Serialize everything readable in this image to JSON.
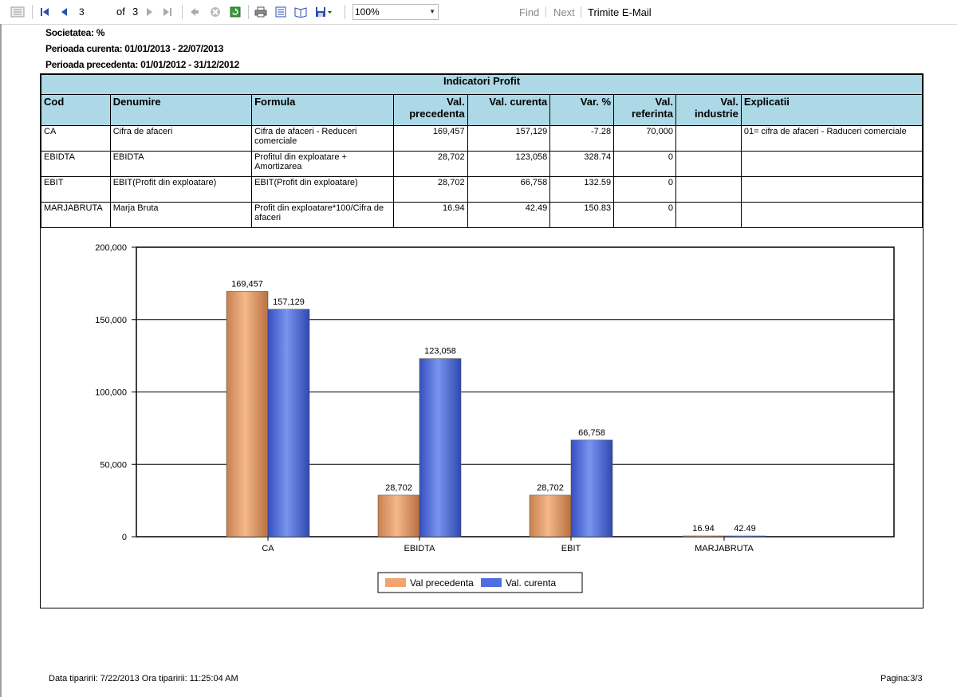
{
  "toolbar": {
    "page_current": "3",
    "page_of": "of",
    "page_total": "3",
    "zoom": "100%",
    "find": "Find",
    "next": "Next",
    "email": "Trimite E-Mail"
  },
  "header": {
    "societatea": "Societatea: %",
    "perioada_curenta": "Perioada curenta: 01/01/2013 - 22/07/2013",
    "perioada_precedenta": "Perioada precedenta: 01/01/2012 - 31/12/2012"
  },
  "table": {
    "title": "Indicatori Profit",
    "columns": [
      "Cod",
      "Denumire",
      "Formula",
      "Val. precedenta",
      "Val. curenta",
      "Var. %",
      "Val. referinta",
      "Val. industrie",
      "Explicatii"
    ],
    "rows": [
      [
        "CA",
        "Cifra de afaceri",
        "Cifra de afaceri - Reduceri comerciale",
        "169,457",
        "157,129",
        "-7.28",
        "70,000",
        "",
        "01= cifra de afaceri - Raduceri comerciale"
      ],
      [
        "EBIDTA",
        "EBIDTA",
        "Profitul din exploatare + Amortizarea",
        "28,702",
        "123,058",
        "328.74",
        "0",
        "",
        ""
      ],
      [
        "EBIT",
        "EBIT(Profit din exploatare)",
        "EBIT(Profit din exploatare)",
        "28,702",
        "66,758",
        "132.59",
        "0",
        "",
        ""
      ],
      [
        "MARJABRUTA",
        "Marja Bruta",
        "Profit din exploatare*100/Cifra de afaceri",
        "16.94",
        "42.49",
        "150.83",
        "0",
        "",
        ""
      ]
    ]
  },
  "chart_data": {
    "type": "bar",
    "categories": [
      "CA",
      "EBIDTA",
      "EBIT",
      "MARJABRUTA"
    ],
    "series": [
      {
        "name": "Val precedenta",
        "values": [
          169457,
          28702,
          28702,
          16.94
        ],
        "labels": [
          "169,457",
          "28,702",
          "28,702",
          "16.94"
        ],
        "color": "#f0a470"
      },
      {
        "name": "Val. curenta",
        "values": [
          157129,
          123058,
          66758,
          42.49
        ],
        "labels": [
          "157,129",
          "123,058",
          "66,758",
          "42.49"
        ],
        "color": "#4f6fe0"
      }
    ],
    "ylim": [
      0,
      200000
    ],
    "yticks": [
      0,
      50000,
      100000,
      150000,
      200000
    ],
    "ytick_labels": [
      "0",
      "50,000",
      "100,000",
      "150,000",
      "200,000"
    ],
    "grid": true,
    "legend": "bottom"
  },
  "footer": {
    "print_date": "Data tiparirii: 7/22/2013 Ora tiparirii: 11:25:04 AM",
    "page": "Pagina:3/3"
  }
}
